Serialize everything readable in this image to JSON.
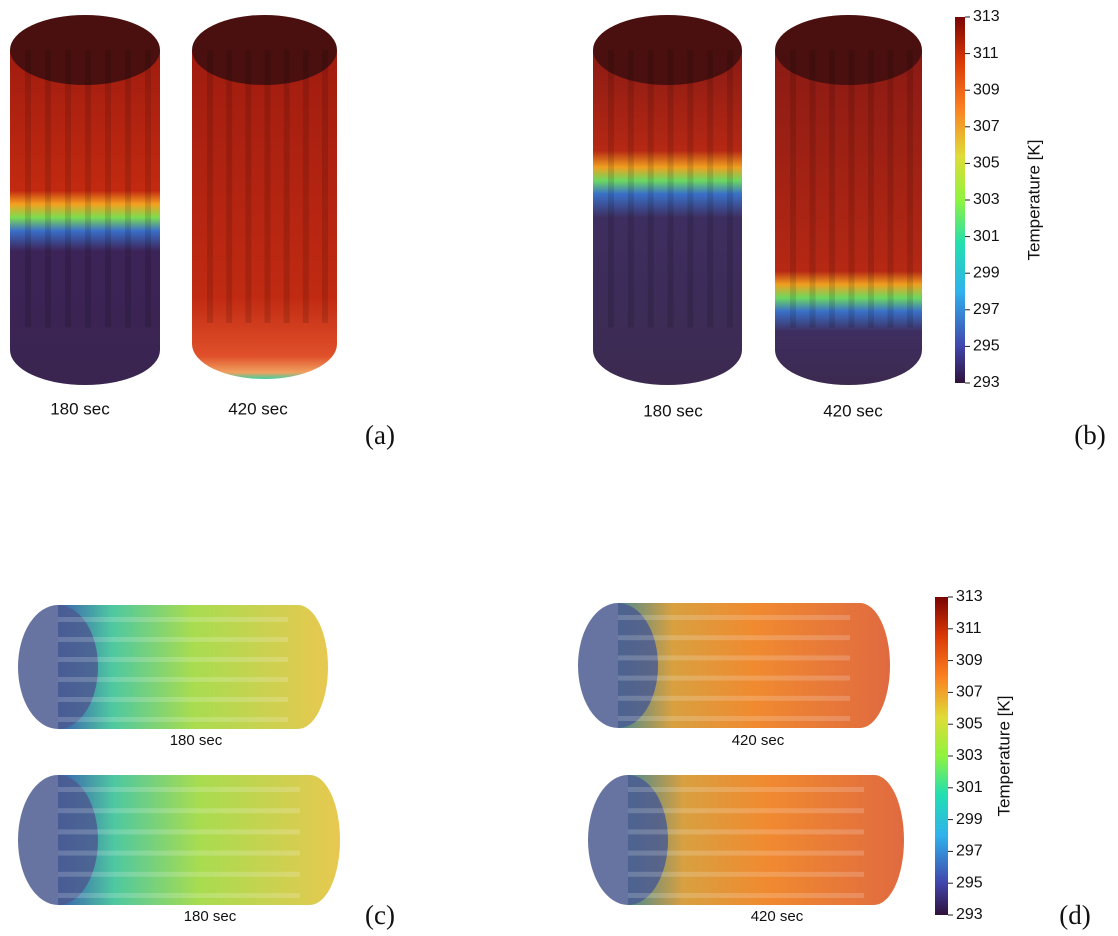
{
  "panels": [
    {
      "label": "(a)",
      "captions": [
        "180 sec",
        "420 sec"
      ]
    },
    {
      "label": "(b)",
      "captions": [
        "180 sec",
        "420 sec"
      ]
    },
    {
      "label": "(c)",
      "captions": [
        "180 sec",
        "180 sec"
      ]
    },
    {
      "label": "(d)",
      "captions": [
        "420 sec",
        "420 sec"
      ]
    }
  ],
  "colorbars": [
    {
      "title": "Temperature [K]",
      "lim": [
        293,
        313
      ],
      "ticks": [
        293,
        295,
        297,
        299,
        301,
        303,
        305,
        307,
        309,
        311,
        313
      ]
    },
    {
      "title": "Temperature [K]",
      "lim": [
        293,
        313
      ],
      "ticks": [
        293,
        295,
        297,
        299,
        301,
        303,
        305,
        307,
        309,
        311,
        313
      ]
    }
  ]
}
